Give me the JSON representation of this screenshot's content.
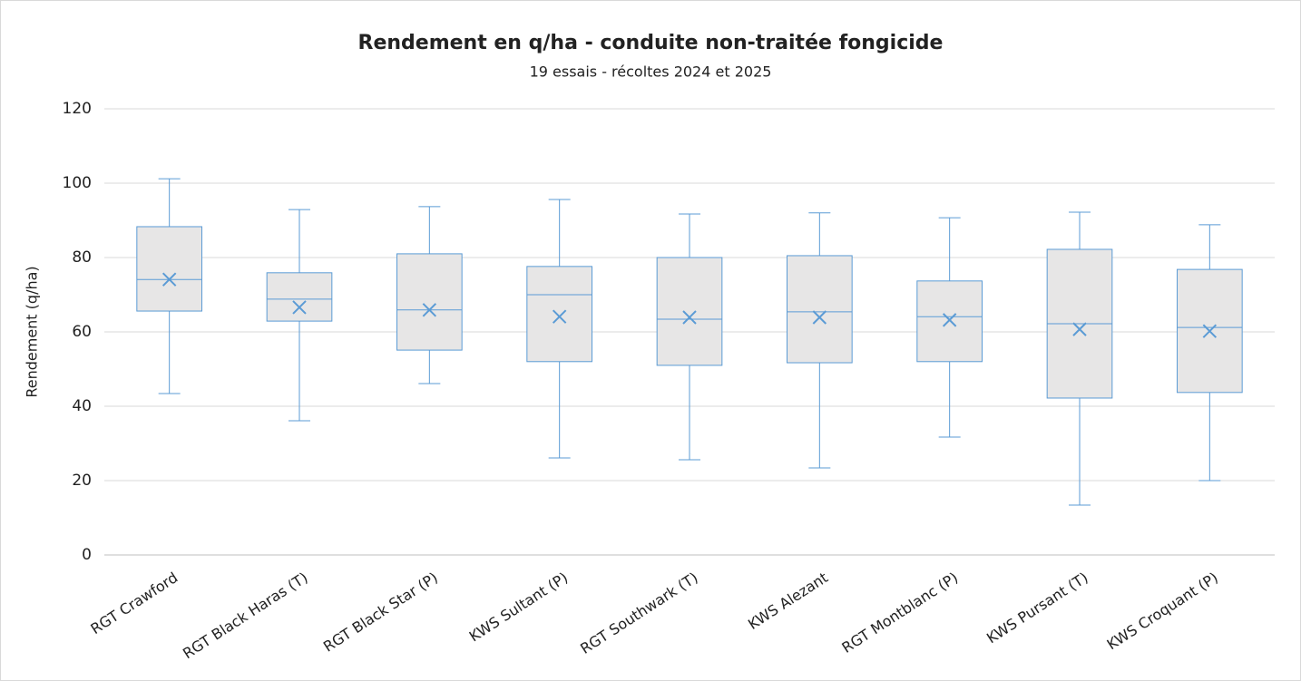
{
  "chart_data": {
    "type": "box",
    "title": "Rendement en q/ha - conduite non-traitée fongicide",
    "subtitle": "19 essais - récoltes 2024 et 2025",
    "y_label": "Rendement (q/ha)",
    "categories": [
      "RGT Crawford",
      "RGT Black Haras (T)",
      "RGT Black Star (P)",
      "KWS Sultant (P)",
      "RGT Southwark (T)",
      "KWS Alezant",
      "RGT Montblanc (P)",
      "KWS Pursant (T)",
      "KWS Croquant (P)"
    ],
    "min": [
      43.4,
      36.1,
      46.1,
      26.1,
      25.6,
      23.4,
      31.7,
      13.4,
      20
    ],
    "q1": [
      65.6,
      62.9,
      55.1,
      52,
      51,
      51.7,
      52,
      42.2,
      43.7
    ],
    "median": [
      74.1,
      68.8,
      65.9,
      70,
      63.4,
      65.4,
      64.1,
      62.2,
      61.2
    ],
    "q3": [
      88.3,
      75.9,
      81,
      77.6,
      80,
      80.5,
      73.7,
      82.2,
      76.8
    ],
    "max": [
      101.2,
      92.9,
      93.7,
      95.6,
      91.7,
      92,
      90.7,
      92.2,
      88.8
    ],
    "mean": [
      74.1,
      66.6,
      65.9,
      64.1,
      63.9,
      63.9,
      63.2,
      60.7,
      60.2
    ],
    "color": "#5b9bd5",
    "box_fill": "#e7e6e6",
    "ylim": [
      0,
      120
    ],
    "yticks": [
      0,
      20,
      40,
      60,
      80,
      100,
      120
    ],
    "grid": true
  }
}
